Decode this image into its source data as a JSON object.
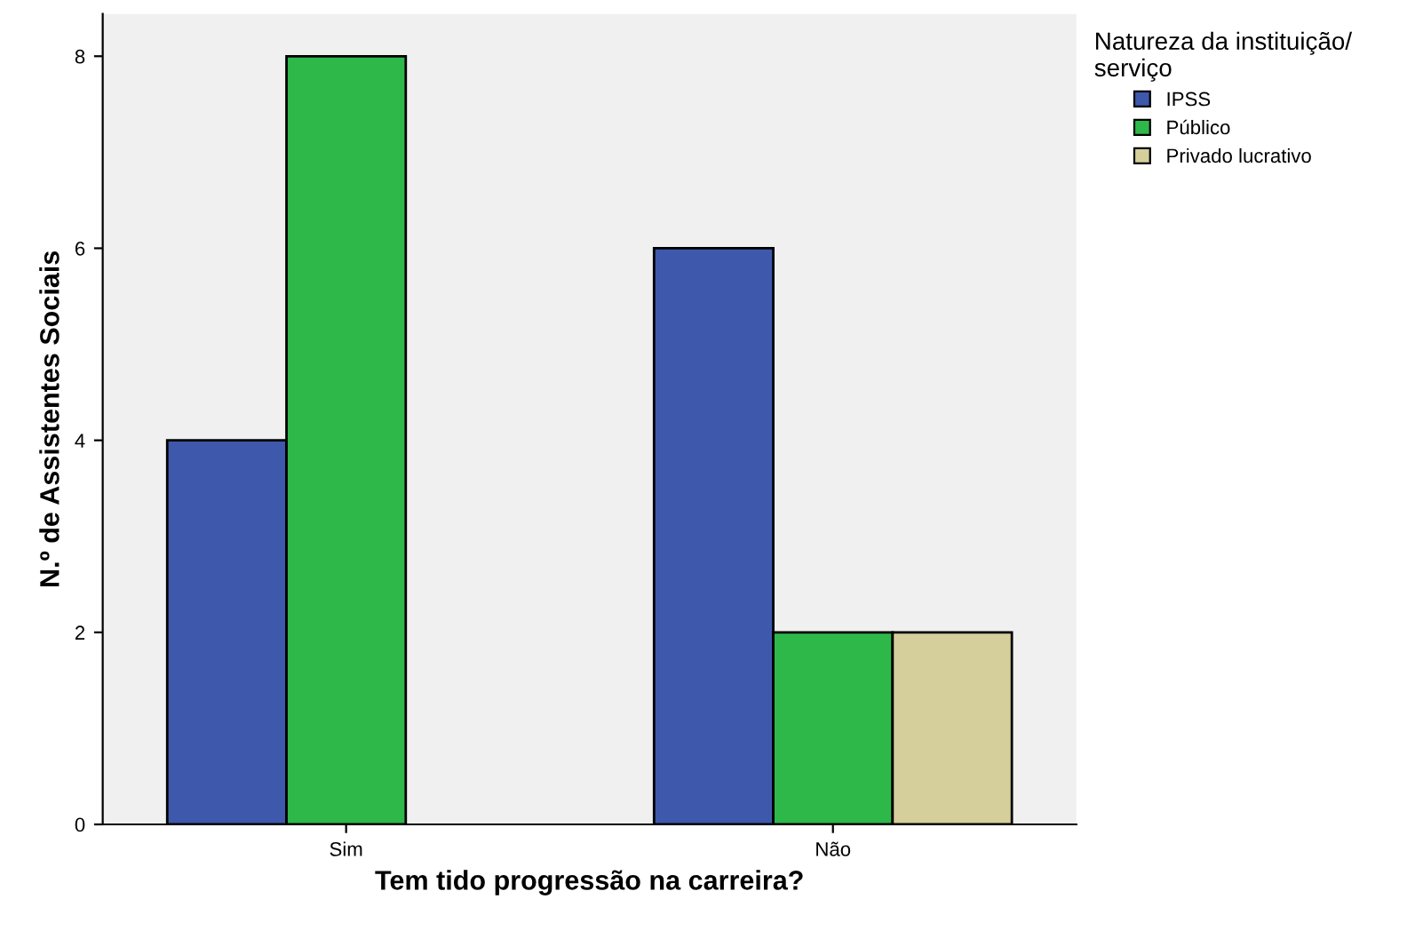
{
  "chart_data": {
    "type": "bar",
    "xlabel": "Tem tido progressão na carreira?",
    "ylabel": "N.º de Assistentes Sociais",
    "legend_title": "Natureza da instituição/\nserviço",
    "categories": [
      "Sim",
      "Não"
    ],
    "series": [
      {
        "name": "IPSS",
        "color": "#3e58ac",
        "values": [
          4,
          6
        ]
      },
      {
        "name": "Público",
        "color": "#2fb84a",
        "values": [
          8,
          2
        ]
      },
      {
        "name": "Privado lucrativo",
        "color": "#d4cf9b",
        "values": [
          null,
          2
        ]
      }
    ],
    "ylim": [
      0,
      8.44
    ],
    "yticks": [
      0,
      2,
      4,
      6,
      8
    ],
    "grid": false,
    "legend": "top right"
  }
}
